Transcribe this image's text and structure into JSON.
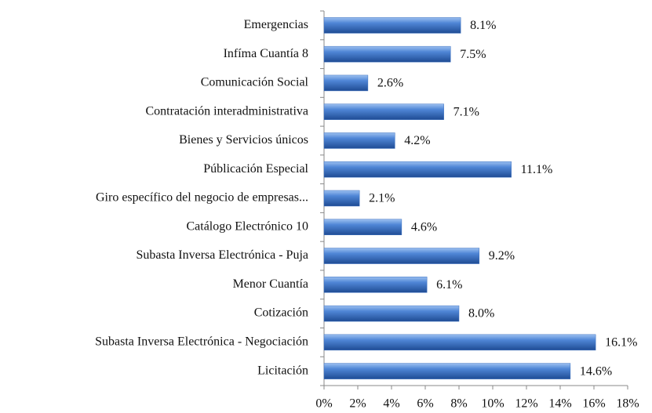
{
  "chart_data": {
    "type": "hbar",
    "categories": [
      "Emergencias",
      "Infíma Cuantía 8",
      "Comunicación Social",
      "Contratación interadministrativa",
      "Bienes y Servicios únicos",
      "Públicación Especial",
      "Giro específico del negocio de empresas...",
      "Catálogo Electrónico 10",
      "Subasta Inversa Electrónica - Puja",
      "Menor Cuantía",
      "Cotización",
      "Subasta Inversa Electrónica - Negociación",
      "Licitación"
    ],
    "values": [
      8.1,
      7.5,
      2.6,
      7.1,
      4.2,
      11.1,
      2.1,
      4.6,
      9.2,
      6.1,
      8.0,
      16.1,
      14.6
    ],
    "value_labels": [
      "8.1%",
      "7.5%",
      "2.6%",
      "7.1%",
      "4.2%",
      "11.1%",
      "2.1%",
      "4.6%",
      "9.2%",
      "6.1%",
      "8.0%",
      "16.1%",
      "14.6%"
    ],
    "color": "#3a6fc0",
    "xlim": [
      0,
      18
    ],
    "xticks": [
      {
        "value": 0,
        "label": "0%"
      },
      {
        "value": 2,
        "label": "2%"
      },
      {
        "value": 4,
        "label": "4%"
      },
      {
        "value": 6,
        "label": "6%"
      },
      {
        "value": 8,
        "label": "8%"
      },
      {
        "value": 10,
        "label": "10%"
      },
      {
        "value": 12,
        "label": "12%"
      },
      {
        "value": 14,
        "label": "14%"
      },
      {
        "value": 16,
        "label": "16%"
      },
      {
        "value": 18,
        "label": "18%"
      }
    ],
    "grid": false
  }
}
